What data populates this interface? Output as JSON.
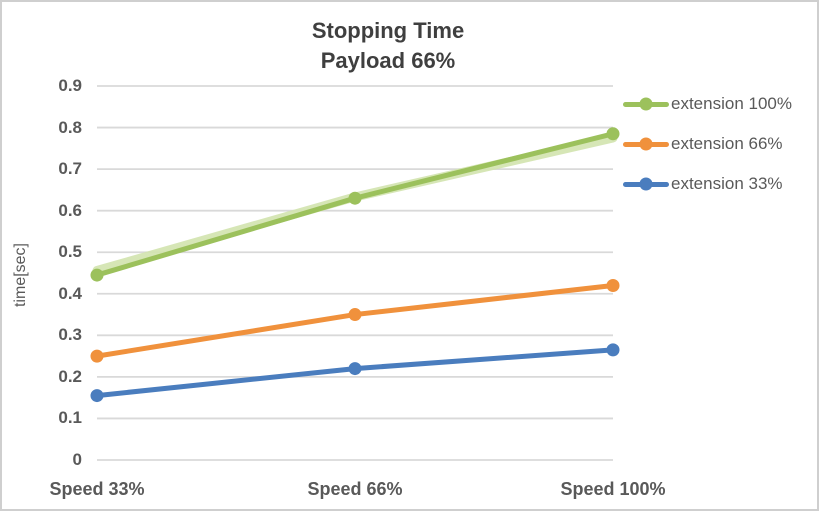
{
  "chart_data": {
    "type": "line",
    "title": "Stopping Time",
    "subtitle": "Payload 66%",
    "xlabel": "",
    "ylabel": "time[sec]",
    "categories": [
      "Speed 33%",
      "Speed 66%",
      "Speed 100%"
    ],
    "series": [
      {
        "name": "extension 100%",
        "color": "#9cc15c",
        "values": [
          0.445,
          0.63,
          0.785
        ]
      },
      {
        "name": "extension 66%",
        "color": "#f0913c",
        "values": [
          0.25,
          0.35,
          0.42
        ]
      },
      {
        "name": "extension 33%",
        "color": "#4a7dbe",
        "values": [
          0.155,
          0.22,
          0.265
        ]
      }
    ],
    "green_glow_effect": {
      "color": "#d2e3ae",
      "values": [
        0.456,
        0.633,
        0.775
      ]
    },
    "ylim": [
      0,
      0.9
    ],
    "ytick_step": 0.1,
    "yticks": [
      "0.9",
      "0.8",
      "0.7",
      "0.6",
      "0.5",
      "0.4",
      "0.3",
      "0.2",
      "0.1",
      "0"
    ],
    "grid": true,
    "legend_position": "right"
  },
  "colors": {
    "gridline": "#d9d9d9",
    "axis_text": "#595959",
    "title_text": "#3f3f3f",
    "border": "#cfcfcf",
    "background": "#ffffff"
  }
}
